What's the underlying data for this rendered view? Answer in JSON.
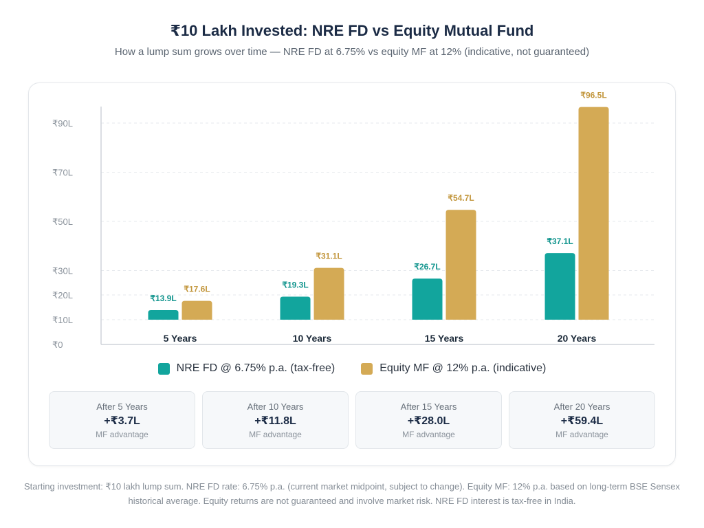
{
  "title": "₹10 Lakh Invested: NRE FD vs Equity Mutual Fund",
  "subtitle": "How a lump sum grows over time — NRE FD at 6.75% vs equity MF at 12% (indicative, not guaranteed)",
  "chart_data": {
    "type": "bar",
    "categories": [
      "5 Years",
      "10 Years",
      "15 Years",
      "20 Years"
    ],
    "series": [
      {
        "name": "NRE FD @ 6.75% p.a. (tax-free)",
        "values": [
          13.9,
          19.3,
          26.7,
          37.1
        ],
        "labels": [
          "₹13.9L",
          "₹19.3L",
          "₹26.7L",
          "₹37.1L"
        ],
        "color": "#12a59d"
      },
      {
        "name": "Equity MF @ 12% p.a. (indicative)",
        "values": [
          17.6,
          31.1,
          54.7,
          96.5
        ],
        "labels": [
          "₹17.6L",
          "₹31.1L",
          "₹54.7L",
          "₹96.5L"
        ],
        "color": "#d4aa55"
      }
    ],
    "yticks": [
      0,
      10,
      20,
      30,
      50,
      70,
      90
    ],
    "ytick_labels": [
      "₹0",
      "₹10L",
      "₹20L",
      "₹30L",
      "₹50L",
      "₹70L",
      "₹90L"
    ],
    "xlabel": "",
    "ylabel": "",
    "grid": true,
    "legend": "bottom"
  },
  "legend": [
    {
      "label": "NRE FD @ 6.75% p.a. (tax-free)",
      "color": "#12a59d"
    },
    {
      "label": "Equity MF @ 12% p.a. (indicative)",
      "color": "#d4aa55"
    }
  ],
  "stats": [
    {
      "label": "After 5 Years",
      "value": "+₹3.7L",
      "sub": "MF advantage"
    },
    {
      "label": "After 10 Years",
      "value": "+₹11.8L",
      "sub": "MF advantage"
    },
    {
      "label": "After 15 Years",
      "value": "+₹28.0L",
      "sub": "MF advantage"
    },
    {
      "label": "After 20 Years",
      "value": "+₹59.4L",
      "sub": "MF advantage"
    }
  ],
  "footnote": "Starting investment: ₹10 lakh lump sum. NRE FD rate: 6.75% p.a. (current market midpoint, subject to change). Equity MF: 12% p.a. based on long-term BSE Sensex historical average. Equity returns are not guaranteed and involve market risk. NRE FD interest is tax-free in India."
}
